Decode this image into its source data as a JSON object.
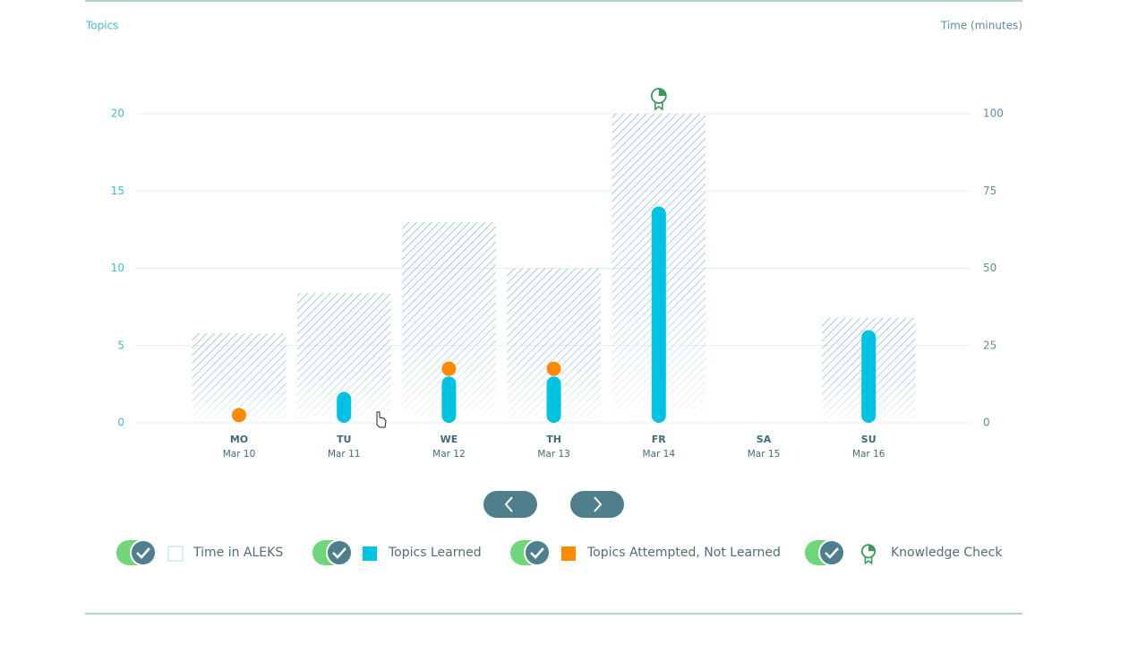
{
  "chart_data": {
    "type": "bar",
    "y_label": "Topics",
    "y2_label": "Time (minutes)",
    "categories": [
      "MO",
      "TU",
      "WE",
      "TH",
      "FR",
      "SA",
      "SU"
    ],
    "dates": [
      "Mar 10",
      "Mar 11",
      "Mar 12",
      "Mar 13",
      "Mar 14",
      "Mar 15",
      "Mar 16"
    ],
    "ylim": [
      0,
      20
    ],
    "yticks": [
      0,
      5,
      10,
      15,
      20
    ],
    "y2lim": [
      0,
      100
    ],
    "y2ticks": [
      0,
      25,
      50,
      75,
      100
    ],
    "grid": true,
    "series": [
      {
        "name": "Time in ALEKS",
        "color": "#8fbccb",
        "axis": "y2",
        "values": [
          29,
          42,
          65,
          50,
          100,
          null,
          34
        ]
      },
      {
        "name": "Topics Learned",
        "color": "#00c3e3",
        "values": [
          0,
          2,
          3,
          3,
          14,
          null,
          6
        ]
      },
      {
        "name": "Topics Attempted, Not Learned",
        "color": "#ff8a00",
        "values": [
          1,
          null,
          1,
          1,
          null,
          null,
          null
        ]
      },
      {
        "name": "Knowledge Check",
        "color": "#3a9a5e",
        "values": [
          null,
          null,
          null,
          null,
          1,
          null,
          null
        ]
      }
    ]
  }
}
